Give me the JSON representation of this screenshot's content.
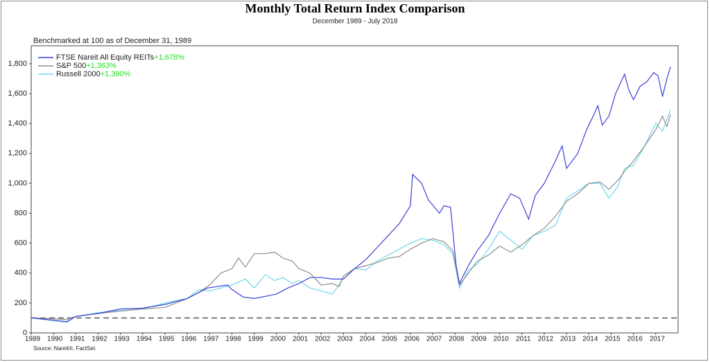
{
  "chart_data": {
    "type": "line",
    "title": "Monthly Total Return Index Comparison",
    "subtitle": "December 1989 - July 2018",
    "note": "Benchmarked at 100 as of December 31, 1989",
    "source": "Source: Nareit®, FactSet.",
    "reference_line": 100,
    "legend": "upper left",
    "xlim": [
      1989,
      2018
    ],
    "xticks": [
      1989,
      1990,
      1991,
      1992,
      1993,
      1994,
      1995,
      1996,
      1997,
      1998,
      1999,
      2000,
      2001,
      2002,
      2003,
      2004,
      2005,
      2006,
      2007,
      2008,
      2009,
      2010,
      2011,
      2012,
      2013,
      2014,
      2015,
      2016,
      2017
    ],
    "ylim": [
      0,
      1920
    ],
    "yticks": [
      0,
      {
        "value": 200,
        "label": "200"
      },
      400,
      600,
      800,
      {
        "value": 1000,
        "label": "1,000"
      },
      {
        "value": 1200,
        "label": "1,200"
      },
      {
        "value": 1400,
        "label": "1,400"
      },
      {
        "value": 1600,
        "label": "1,600"
      },
      {
        "value": 1800,
        "label": "1,800"
      }
    ],
    "series": [
      {
        "name": "FTSE Nareit All Equity REITs",
        "change": "+1,678%",
        "color": "#3b3fd8",
        "x": [
          1989,
          1990.6,
          1991,
          1992,
          1993,
          1994,
          1995,
          1996,
          1996.9,
          1997.8,
          1998,
          1998.5,
          1999,
          1999.7,
          2000,
          2000.5,
          2001,
          2001.5,
          2002,
          2002.5,
          2003,
          2003.5,
          2004,
          2004.5,
          2005,
          2005.5,
          2006,
          2006.1,
          2006.5,
          2006.8,
          2007.3,
          2007.5,
          2007.8,
          2007.95,
          2008.05,
          2008.2,
          2008.6,
          2009,
          2009.5,
          2010,
          2010.5,
          2010.9,
          2011.3,
          2011.6,
          2012,
          2012.5,
          2012.8,
          2013,
          2013.5,
          2013.9,
          2014.2,
          2014.4,
          2014.6,
          2014.9,
          2015.2,
          2015.6,
          2015.8,
          2016,
          2016.3,
          2016.6,
          2016.9,
          2017.1,
          2017.3,
          2017.5,
          2017.66
        ],
        "values": [
          100,
          75,
          110,
          130,
          160,
          165,
          190,
          230,
          300,
          320,
          290,
          240,
          230,
          250,
          260,
          300,
          330,
          370,
          370,
          360,
          360,
          430,
          490,
          570,
          650,
          730,
          850,
          1060,
          1000,
          890,
          800,
          850,
          840,
          600,
          450,
          330,
          450,
          550,
          650,
          800,
          930,
          900,
          760,
          920,
          1000,
          1150,
          1250,
          1100,
          1200,
          1360,
          1450,
          1520,
          1390,
          1450,
          1600,
          1730,
          1620,
          1560,
          1650,
          1680,
          1740,
          1720,
          1580,
          1700,
          1780
        ]
      },
      {
        "name": "S&P 500",
        "change": "+1,363%",
        "color": "#8c8c8c",
        "x": [
          1989,
          1990.6,
          1991,
          1992,
          1993,
          1994,
          1995,
          1996,
          1996.5,
          1997,
          1997.5,
          1998,
          1998.3,
          1998.6,
          1999,
          1999.5,
          1999.9,
          2000.3,
          2000.7,
          2001,
          2001.5,
          2002,
          2002.5,
          2002.8,
          2003,
          2003.5,
          2004,
          2004.5,
          2005,
          2005.5,
          2006,
          2006.5,
          2007,
          2007.5,
          2007.9,
          2008.2,
          2008.6,
          2009,
          2009.5,
          2010,
          2010.5,
          2011,
          2011.5,
          2012,
          2012.5,
          2013,
          2013.5,
          2014,
          2014.5,
          2014.9,
          2015.3,
          2015.6,
          2016,
          2016.5,
          2017,
          2017.3,
          2017.5,
          2017.66
        ],
        "values": [
          100,
          90,
          110,
          130,
          145,
          160,
          170,
          230,
          270,
          320,
          400,
          430,
          500,
          440,
          530,
          530,
          540,
          500,
          480,
          430,
          400,
          320,
          330,
          310,
          380,
          430,
          450,
          470,
          500,
          510,
          560,
          600,
          630,
          610,
          550,
          320,
          400,
          480,
          520,
          580,
          540,
          590,
          650,
          700,
          780,
          880,
          930,
          1000,
          1010,
          960,
          1020,
          1080,
          1150,
          1250,
          1360,
          1450,
          1380,
          1460
        ]
      },
      {
        "name": "Russell 2000",
        "change": "+1,390%",
        "color": "#6fd6ee",
        "x": [
          1989,
          1990.6,
          1991,
          1992,
          1993,
          1994,
          1995,
          1996,
          1996.5,
          1997,
          1997.5,
          1998,
          1998.6,
          1999,
          1999.5,
          1999.9,
          2000.3,
          2000.7,
          2001,
          2001.5,
          2002,
          2002.5,
          2002.8,
          2003,
          2003.5,
          2004,
          2004.5,
          2005,
          2005.5,
          2006,
          2006.5,
          2007,
          2007.5,
          2007.9,
          2008.2,
          2008.6,
          2009,
          2009.5,
          2010,
          2010.5,
          2011,
          2011.5,
          2012,
          2012.5,
          2013,
          2013.5,
          2014,
          2014.5,
          2014.9,
          2015.3,
          2015.6,
          2016,
          2016.5,
          2017,
          2017.3,
          2017.66
        ],
        "values": [
          100,
          70,
          110,
          135,
          150,
          160,
          200,
          230,
          290,
          280,
          300,
          320,
          360,
          300,
          390,
          350,
          370,
          330,
          350,
          300,
          280,
          260,
          320,
          380,
          430,
          420,
          480,
          520,
          560,
          600,
          630,
          620,
          590,
          530,
          300,
          420,
          460,
          560,
          680,
          620,
          560,
          650,
          680,
          720,
          900,
          950,
          1000,
          1000,
          900,
          980,
          1100,
          1120,
          1250,
          1400,
          1350,
          1490
        ]
      }
    ]
  }
}
